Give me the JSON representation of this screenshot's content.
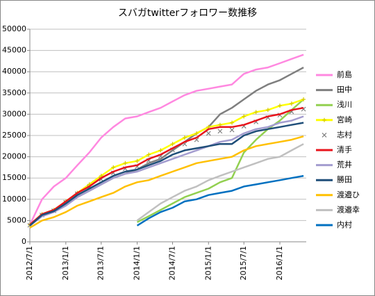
{
  "chart_data": {
    "type": "line",
    "title": "スバガtwitterフォロワー数推移",
    "x": [
      "2012/7/1",
      "2012/9/1",
      "2012/11/1",
      "2013/1/1",
      "2013/3/1",
      "2013/5/1",
      "2013/7/1",
      "2013/9/1",
      "2013/11/1",
      "2014/1/1",
      "2014/3/1",
      "2014/5/1",
      "2014/7/1",
      "2014/9/1",
      "2014/11/1",
      "2015/1/1",
      "2015/3/1",
      "2015/5/1",
      "2015/7/1",
      "2015/9/1",
      "2015/11/1",
      "2016/1/1",
      "2016/3/1",
      "2016/5/1"
    ],
    "xlim": [
      "2012/7/1",
      "2016/5/15"
    ],
    "xticks": [
      "2012/7/1",
      "2013/1/1",
      "2013/7/1",
      "2014/1/1",
      "2014/7/1",
      "2015/1/1",
      "2015/7/1",
      "2016/1/1"
    ],
    "ylim": [
      0,
      50000
    ],
    "yticks": [
      0,
      5000,
      10000,
      15000,
      20000,
      25000,
      30000,
      35000,
      40000,
      45000,
      50000
    ],
    "grid": true,
    "legend": "right",
    "series": [
      {
        "name": "前島",
        "color": "#ff88e0",
        "values": [
          4000,
          10000,
          13000,
          15000,
          18000,
          21000,
          24500,
          27000,
          29000,
          29500,
          30500,
          31500,
          33000,
          34500,
          35500,
          36000,
          36500,
          37000,
          39500,
          40500,
          41000,
          42000,
          43000,
          44000
        ]
      },
      {
        "name": "田中",
        "color": "#7f7f7f",
        "values": [
          4000,
          6500,
          7500,
          9000,
          10500,
          12000,
          13500,
          15000,
          16000,
          17000,
          18500,
          19500,
          21500,
          23500,
          25500,
          27000,
          30000,
          31500,
          33500,
          35500,
          37000,
          38000,
          39500,
          41000
        ]
      },
      {
        "name": "浅川",
        "color": "#92d050",
        "values": [
          null,
          null,
          null,
          null,
          null,
          null,
          null,
          null,
          null,
          4600,
          6000,
          7500,
          9000,
          10500,
          11500,
          12500,
          14000,
          15000,
          21000,
          24000,
          26500,
          28500,
          31000,
          33500
        ]
      },
      {
        "name": "宮崎",
        "color": "#ffff00",
        "marker": "plus",
        "values": [
          4000,
          6500,
          7500,
          9500,
          11500,
          13500,
          15500,
          17500,
          18500,
          19000,
          20500,
          21500,
          23000,
          24500,
          25500,
          27000,
          27500,
          28000,
          29500,
          30500,
          31000,
          32000,
          32500,
          33500
        ]
      },
      {
        "name": "志村",
        "color": "#a6a6a6",
        "marker": "x",
        "line": false,
        "values": [
          3900,
          6300,
          7300,
          9300,
          11300,
          12800,
          14700,
          16200,
          17200,
          17700,
          19100,
          20100,
          21600,
          23000,
          24000,
          25500,
          26000,
          26300,
          27200,
          28200,
          29200,
          29800,
          30600,
          31200
        ]
      },
      {
        "name": "清手",
        "color": "#e8141c",
        "values": [
          4000,
          6500,
          7500,
          9500,
          11500,
          13000,
          15000,
          16500,
          17500,
          18000,
          19500,
          20500,
          22000,
          23500,
          24500,
          26500,
          27000,
          27000,
          27500,
          28500,
          29500,
          30000,
          31000,
          31500
        ]
      },
      {
        "name": "荒井",
        "color": "#a39ccf",
        "values": [
          3800,
          6000,
          7000,
          8500,
          10500,
          12000,
          13500,
          15000,
          16000,
          16500,
          17500,
          18500,
          19500,
          20500,
          21500,
          22500,
          23500,
          24000,
          25500,
          26500,
          27000,
          28000,
          28500,
          29500
        ]
      },
      {
        "name": "勝田",
        "color": "#1f4e79",
        "values": [
          3800,
          6300,
          7200,
          9000,
          11000,
          12500,
          14000,
          15500,
          16500,
          17000,
          18000,
          19000,
          20500,
          21500,
          22000,
          22500,
          23000,
          23000,
          25000,
          26000,
          26500,
          27000,
          27500,
          28000
        ]
      },
      {
        "name": "渡邉ひ",
        "color": "#ffc000",
        "values": [
          3300,
          5000,
          5800,
          7000,
          8500,
          9500,
          10500,
          11500,
          13000,
          14000,
          14500,
          15500,
          16500,
          17500,
          18500,
          19000,
          19500,
          20000,
          21500,
          22500,
          23000,
          23500,
          24000,
          24800
        ]
      },
      {
        "name": "渡邉幸",
        "color": "#c0c0c0",
        "values": [
          null,
          null,
          null,
          null,
          null,
          null,
          null,
          null,
          null,
          5000,
          7000,
          9000,
          10500,
          12000,
          13000,
          14500,
          15500,
          16500,
          17500,
          18500,
          19500,
          20000,
          21500,
          23000
        ]
      },
      {
        "name": "内村",
        "color": "#0070c0",
        "values": [
          null,
          null,
          null,
          null,
          null,
          null,
          null,
          null,
          null,
          3800,
          5500,
          7000,
          8000,
          9500,
          10000,
          11000,
          11500,
          12000,
          13000,
          13500,
          14000,
          14500,
          15000,
          15500
        ]
      }
    ]
  }
}
